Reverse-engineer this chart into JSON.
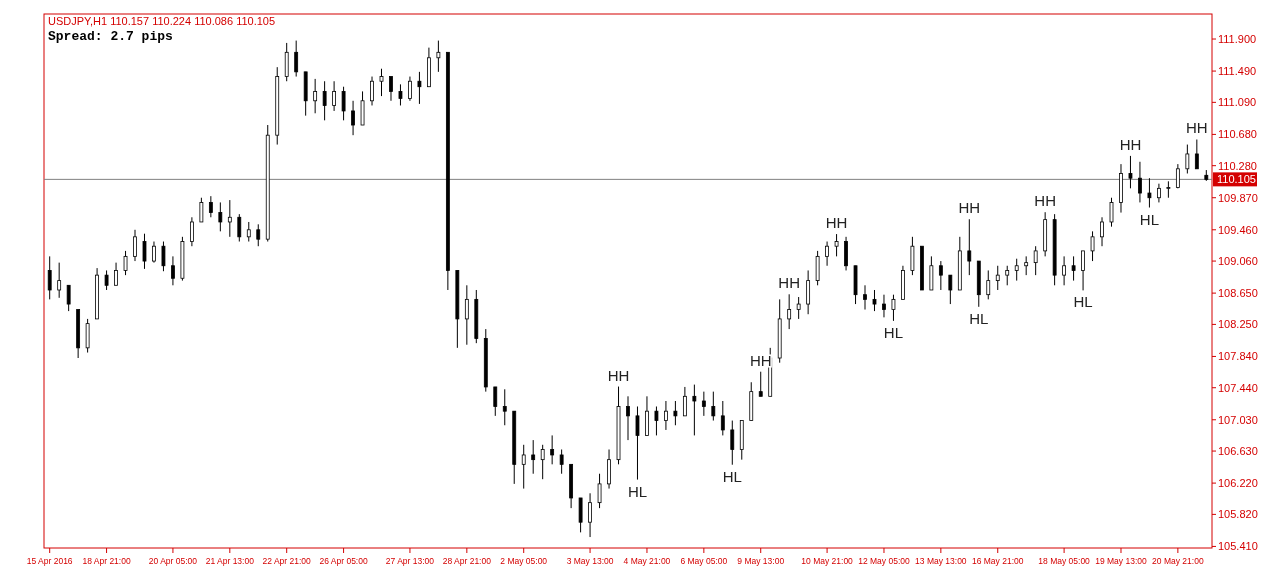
{
  "chart_data": {
    "type": "candlestick",
    "title": "USDJPY,H1  110.157 110.224 110.086 110.105",
    "color": "#000000",
    "categories": [
      "15 Apr 2016",
      null,
      null,
      null,
      null,
      null,
      "18 Apr 21:00",
      null,
      null,
      null,
      null,
      null,
      null,
      "20 Apr 05:00",
      null,
      null,
      null,
      null,
      null,
      "21 Apr 13:00",
      null,
      null,
      null,
      null,
      null,
      "22 Apr 21:00",
      null,
      null,
      null,
      null,
      null,
      "26 Apr 05:00",
      null,
      null,
      null,
      null,
      null,
      null,
      "27 Apr 13:00",
      null,
      null,
      null,
      null,
      null,
      "28 Apr 21:00",
      null,
      null,
      null,
      null,
      null,
      "2 May 05:00",
      null,
      null,
      null,
      null,
      null,
      null,
      "3 May 13:00",
      null,
      null,
      null,
      null,
      null,
      "4 May 21:00",
      null,
      null,
      null,
      null,
      null,
      "6 May 05:00",
      null,
      null,
      null,
      null,
      null,
      "9 May 13:00",
      null,
      null,
      null,
      null,
      null,
      null,
      "10 May 21:00",
      null,
      null,
      null,
      null,
      null,
      "12 May 05:00",
      null,
      null,
      null,
      null,
      null,
      "13 May 13:00",
      null,
      null,
      null,
      null,
      null,
      "16 May 21:00",
      null,
      null,
      null,
      null,
      null,
      null,
      "18 May 05:00",
      null,
      null,
      null,
      null,
      null,
      "19 May 13:00",
      null,
      null,
      null,
      null,
      null,
      "20 May 21:00",
      null,
      null,
      null
    ],
    "ohlc": [
      [
        108.94,
        109.12,
        108.57,
        108.69
      ],
      [
        108.69,
        109.04,
        108.59,
        108.81
      ],
      [
        108.75,
        108.75,
        108.42,
        108.51
      ],
      [
        108.44,
        108.44,
        107.82,
        107.95
      ],
      [
        107.95,
        108.32,
        107.89,
        108.26
      ],
      [
        108.32,
        108.97,
        108.32,
        108.88
      ],
      [
        108.88,
        108.94,
        108.69,
        108.75
      ],
      [
        108.75,
        109.04,
        108.75,
        108.94
      ],
      [
        108.94,
        109.19,
        108.88,
        109.12
      ],
      [
        109.12,
        109.46,
        109.06,
        109.37
      ],
      [
        109.31,
        109.41,
        108.96,
        109.06
      ],
      [
        109.06,
        109.31,
        109.04,
        109.25
      ],
      [
        109.25,
        109.31,
        108.93,
        109.0
      ],
      [
        109.0,
        109.12,
        108.75,
        108.84
      ],
      [
        108.84,
        109.37,
        108.81,
        109.31
      ],
      [
        109.31,
        109.62,
        109.25,
        109.56
      ],
      [
        109.56,
        109.87,
        109.56,
        109.81
      ],
      [
        109.81,
        109.89,
        109.62,
        109.68
      ],
      [
        109.68,
        109.81,
        109.44,
        109.56
      ],
      [
        109.56,
        109.84,
        109.37,
        109.62
      ],
      [
        109.62,
        109.66,
        109.31,
        109.37
      ],
      [
        109.37,
        109.56,
        109.31,
        109.46
      ],
      [
        109.46,
        109.53,
        109.25,
        109.34
      ],
      [
        109.34,
        110.8,
        109.31,
        110.67
      ],
      [
        110.67,
        111.54,
        110.55,
        111.42
      ],
      [
        111.42,
        111.85,
        111.36,
        111.73
      ],
      [
        111.73,
        111.88,
        111.42,
        111.48
      ],
      [
        111.48,
        111.48,
        110.92,
        111.11
      ],
      [
        111.11,
        111.39,
        110.95,
        111.23
      ],
      [
        111.23,
        111.36,
        110.86,
        111.05
      ],
      [
        111.05,
        111.36,
        110.98,
        111.23
      ],
      [
        111.23,
        111.29,
        110.86,
        110.98
      ],
      [
        110.98,
        111.11,
        110.67,
        110.8
      ],
      [
        110.8,
        111.23,
        110.8,
        111.11
      ],
      [
        111.11,
        111.42,
        111.05,
        111.36
      ],
      [
        111.36,
        111.52,
        111.17,
        111.42
      ],
      [
        111.42,
        111.42,
        111.11,
        111.23
      ],
      [
        111.23,
        111.32,
        111.05,
        111.14
      ],
      [
        111.14,
        111.42,
        111.11,
        111.36
      ],
      [
        111.36,
        111.48,
        111.07,
        111.29
      ],
      [
        111.29,
        111.79,
        111.29,
        111.66
      ],
      [
        111.66,
        111.88,
        111.48,
        111.73
      ],
      [
        111.73,
        111.73,
        108.69,
        108.94
      ],
      [
        108.94,
        108.94,
        107.95,
        108.32
      ],
      [
        108.32,
        108.75,
        107.99,
        108.57
      ],
      [
        108.57,
        108.69,
        108.01,
        108.07
      ],
      [
        108.07,
        108.19,
        107.39,
        107.45
      ],
      [
        107.45,
        107.45,
        107.08,
        107.2
      ],
      [
        107.2,
        107.42,
        106.96,
        107.14
      ],
      [
        107.14,
        107.14,
        106.21,
        106.46
      ],
      [
        106.46,
        106.71,
        106.15,
        106.58
      ],
      [
        106.58,
        106.77,
        106.34,
        106.52
      ],
      [
        106.52,
        106.71,
        106.27,
        106.65
      ],
      [
        106.65,
        106.83,
        106.46,
        106.58
      ],
      [
        106.58,
        106.65,
        106.34,
        106.46
      ],
      [
        106.46,
        106.46,
        105.9,
        106.03
      ],
      [
        106.03,
        106.03,
        105.59,
        105.72
      ],
      [
        105.72,
        106.09,
        105.53,
        105.97
      ],
      [
        105.97,
        106.34,
        105.9,
        106.21
      ],
      [
        106.21,
        106.65,
        106.15,
        106.52
      ],
      [
        106.52,
        107.455,
        106.46,
        107.2
      ],
      [
        107.2,
        107.33,
        106.77,
        107.08
      ],
      [
        107.08,
        107.2,
        106.265,
        106.83
      ],
      [
        106.83,
        107.33,
        106.83,
        107.14
      ],
      [
        107.14,
        107.2,
        106.83,
        107.02
      ],
      [
        107.02,
        107.27,
        106.9,
        107.14
      ],
      [
        107.14,
        107.27,
        106.96,
        107.08
      ],
      [
        107.08,
        107.45,
        107.08,
        107.33
      ],
      [
        107.33,
        107.48,
        106.83,
        107.27
      ],
      [
        107.27,
        107.39,
        107.08,
        107.2
      ],
      [
        107.2,
        107.39,
        107.02,
        107.08
      ],
      [
        107.08,
        107.27,
        106.83,
        106.9
      ],
      [
        106.9,
        107.02,
        106.455,
        106.65
      ],
      [
        106.65,
        107.02,
        106.52,
        107.02
      ],
      [
        107.02,
        107.51,
        107.02,
        107.39
      ],
      [
        107.39,
        107.645,
        107.33,
        107.33
      ],
      [
        107.33,
        107.95,
        107.33,
        107.82
      ],
      [
        107.82,
        108.57,
        107.76,
        108.32
      ],
      [
        108.32,
        108.635,
        108.19,
        108.44
      ],
      [
        108.44,
        108.6,
        108.32,
        108.51
      ],
      [
        108.51,
        108.94,
        108.38,
        108.81
      ],
      [
        108.81,
        109.19,
        108.75,
        109.12
      ],
      [
        109.12,
        109.31,
        109.0,
        109.25
      ],
      [
        109.25,
        109.405,
        109.12,
        109.31
      ],
      [
        109.31,
        109.37,
        108.94,
        109.0
      ],
      [
        109.0,
        109.0,
        108.51,
        108.63
      ],
      [
        108.63,
        108.75,
        108.44,
        108.57
      ],
      [
        108.57,
        108.69,
        108.42,
        108.51
      ],
      [
        108.51,
        108.63,
        108.34,
        108.44
      ],
      [
        108.44,
        108.63,
        108.295,
        108.57
      ],
      [
        108.57,
        109.0,
        108.57,
        108.94
      ],
      [
        108.94,
        109.37,
        108.88,
        109.25
      ],
      [
        109.25,
        109.25,
        108.69,
        108.69
      ],
      [
        108.69,
        109.12,
        108.69,
        109.0
      ],
      [
        109.0,
        109.06,
        108.69,
        108.88
      ],
      [
        108.88,
        108.88,
        108.51,
        108.69
      ],
      [
        108.69,
        109.37,
        108.69,
        109.19
      ],
      [
        109.19,
        109.595,
        108.88,
        109.06
      ],
      [
        109.06,
        109.06,
        108.475,
        108.63
      ],
      [
        108.63,
        108.94,
        108.57,
        108.81
      ],
      [
        108.81,
        109.0,
        108.69,
        108.88
      ],
      [
        108.88,
        109.0,
        108.75,
        108.94
      ],
      [
        108.94,
        109.09,
        108.81,
        109.0
      ],
      [
        109.0,
        109.12,
        108.88,
        109.04
      ],
      [
        109.04,
        109.25,
        108.88,
        109.19
      ],
      [
        109.19,
        109.685,
        109.12,
        109.59
      ],
      [
        109.59,
        109.66,
        108.75,
        108.88
      ],
      [
        108.88,
        109.12,
        108.75,
        109.0
      ],
      [
        109.0,
        109.12,
        108.81,
        108.94
      ],
      [
        108.94,
        109.19,
        108.685,
        109.19
      ],
      [
        109.19,
        109.44,
        109.06,
        109.37
      ],
      [
        109.37,
        109.62,
        109.25,
        109.56
      ],
      [
        109.56,
        109.87,
        109.5,
        109.81
      ],
      [
        109.81,
        110.3,
        109.68,
        110.18
      ],
      [
        110.18,
        110.405,
        109.99,
        110.12
      ],
      [
        110.12,
        110.33,
        109.81,
        109.93
      ],
      [
        109.93,
        110.12,
        109.745,
        109.87
      ],
      [
        109.87,
        110.05,
        109.81,
        109.99
      ],
      [
        109.99,
        110.08,
        109.87,
        110.0
      ],
      [
        110.0,
        110.3,
        109.99,
        110.24
      ],
      [
        110.24,
        110.55,
        110.18,
        110.43
      ],
      [
        110.43,
        110.615,
        110.24,
        110.24
      ],
      [
        110.157,
        110.224,
        110.086,
        110.105
      ]
    ],
    "ylim": [
      105.39,
      112.22
    ],
    "yticks": [
      {
        "value": 111.9,
        "label": "111.900"
      },
      {
        "value": 111.49,
        "label": "111.490"
      },
      {
        "value": 111.09,
        "label": "111.090"
      },
      {
        "value": 110.68,
        "label": "110.680"
      },
      {
        "value": 110.28,
        "label": "110.280"
      },
      {
        "value": 109.87,
        "label": "109.870"
      },
      {
        "value": 109.46,
        "label": "109.460"
      },
      {
        "value": 109.06,
        "label": "109.060"
      },
      {
        "value": 108.65,
        "label": "108.650"
      },
      {
        "value": 108.25,
        "label": "108.250"
      },
      {
        "value": 107.84,
        "label": "107.840"
      },
      {
        "value": 107.44,
        "label": "107.440"
      },
      {
        "value": 107.03,
        "label": "107.030"
      },
      {
        "value": 106.63,
        "label": "106.630"
      },
      {
        "value": 106.22,
        "label": "106.220"
      },
      {
        "value": 105.82,
        "label": "105.820"
      },
      {
        "value": 105.41,
        "label": "105.410"
      }
    ],
    "ref_lines": [
      {
        "axis": "y",
        "value": 110.105,
        "label": "110.105",
        "color": "#808080"
      }
    ],
    "annotations": [
      "Spread: 2.7 pips",
      {
        "text": "HH",
        "y": 107.455
      },
      {
        "text": "HL",
        "y": 106.265
      },
      {
        "text": "HL",
        "y": 106.455
      },
      {
        "text": "HH",
        "y": 107.645
      },
      {
        "text": "HH",
        "y": 108.635
      },
      {
        "text": "HH",
        "y": 109.405
      },
      {
        "text": "HL",
        "y": 108.295
      },
      {
        "text": "HH",
        "y": 109.595
      },
      {
        "text": "HL",
        "y": 108.475
      },
      {
        "text": "HH",
        "y": 109.685
      },
      {
        "text": "HL",
        "y": 108.685
      },
      {
        "text": "HH",
        "y": 110.405
      },
      {
        "text": "HL",
        "y": 109.745
      },
      {
        "text": "HH",
        "y": 110.615
      }
    ],
    "grid": false
  }
}
